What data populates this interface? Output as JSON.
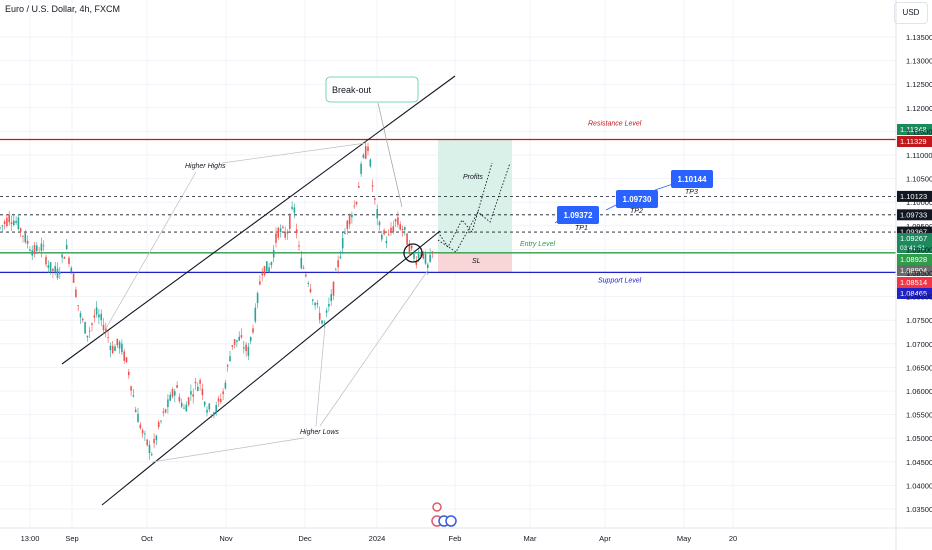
{
  "header": {
    "symbol_title": "Euro / U.S. Dollar, 4h, FXCM",
    "currency_button": "USD"
  },
  "chart_data": {
    "type": "candlestick",
    "instrument": "EUR/USD",
    "ylim": [
      1.03,
      1.14
    ],
    "y_ticks": [
      "1.13500",
      "1.13000",
      "1.12500",
      "1.12000",
      "1.11500",
      "1.11000",
      "1.10500",
      "1.10000",
      "1.09500",
      "1.09000",
      "1.08500",
      "1.08000",
      "1.07500",
      "1.07000",
      "1.06500",
      "1.06000",
      "1.05500",
      "1.05000",
      "1.04500",
      "1.04000",
      "1.03500"
    ],
    "x_ticks": [
      {
        "label": "13:00",
        "x": 30
      },
      {
        "label": "Sep",
        "x": 72
      },
      {
        "label": "Oct",
        "x": 147
      },
      {
        "label": "Nov",
        "x": 226
      },
      {
        "label": "Dec",
        "x": 305
      },
      {
        "label": "2024",
        "x": 377
      },
      {
        "label": "Feb",
        "x": 455
      },
      {
        "label": "Mar",
        "x": 530
      },
      {
        "label": "Apr",
        "x": 605
      },
      {
        "label": "May",
        "x": 684
      },
      {
        "label": "20",
        "x": 733
      }
    ],
    "price_path": [
      [
        0,
        1.0945
      ],
      [
        10,
        1.097
      ],
      [
        18,
        1.0955
      ],
      [
        26,
        1.092
      ],
      [
        34,
        1.0895
      ],
      [
        42,
        1.0905
      ],
      [
        50,
        1.086
      ],
      [
        58,
        1.085
      ],
      [
        66,
        1.0905
      ],
      [
        72,
        1.086
      ],
      [
        80,
        1.076
      ],
      [
        88,
        1.072
      ],
      [
        96,
        1.0765
      ],
      [
        104,
        1.074
      ],
      [
        112,
        1.069
      ],
      [
        120,
        1.07
      ],
      [
        128,
        1.065
      ],
      [
        136,
        1.056
      ],
      [
        144,
        1.05
      ],
      [
        152,
        1.047
      ],
      [
        160,
        1.053
      ],
      [
        168,
        1.057
      ],
      [
        176,
        1.061
      ],
      [
        184,
        1.056
      ],
      [
        192,
        1.06
      ],
      [
        200,
        1.062
      ],
      [
        208,
        1.056
      ],
      [
        216,
        1.056
      ],
      [
        224,
        1.06
      ],
      [
        232,
        1.07
      ],
      [
        240,
        1.071
      ],
      [
        248,
        1.068
      ],
      [
        256,
        1.077
      ],
      [
        262,
        1.086
      ],
      [
        270,
        1.086
      ],
      [
        278,
        1.094
      ],
      [
        286,
        1.093
      ],
      [
        294,
        1.099
      ],
      [
        300,
        1.088
      ],
      [
        308,
        1.084
      ],
      [
        316,
        1.078
      ],
      [
        324,
        1.074
      ],
      [
        332,
        1.08
      ],
      [
        340,
        1.089
      ],
      [
        348,
        1.096
      ],
      [
        356,
        1.1
      ],
      [
        362,
        1.108
      ],
      [
        368,
        1.112
      ],
      [
        374,
        1.101
      ],
      [
        380,
        1.094
      ],
      [
        388,
        1.092
      ],
      [
        396,
        1.096
      ],
      [
        404,
        1.094
      ],
      [
        410,
        1.09
      ],
      [
        416,
        1.088
      ],
      [
        422,
        1.09
      ],
      [
        428,
        1.086
      ],
      [
        434,
        1.09
      ]
    ],
    "levels": [
      {
        "name": "Resistance Level",
        "price": 1.11329,
        "color": "#c2181b"
      },
      {
        "name": "Support Level",
        "price": 1.08514,
        "color": "#1e22c8"
      },
      {
        "name": "Entry Level",
        "price": 1.08928,
        "color": "#2e9c48"
      },
      {
        "name": "TP1",
        "price": 1.09372
      },
      {
        "name": "TP2",
        "price": 1.0973
      },
      {
        "name": "TP3",
        "price": 1.10144
      },
      {
        "name": "dashed",
        "price": 1.10123
      },
      {
        "name": "dashed",
        "price": 1.09733
      },
      {
        "name": "dashed",
        "price": 1.09367
      }
    ],
    "price_labels": [
      {
        "text": "1.11348",
        "bg": "#1d8a5e",
        "price": 1.11348
      },
      {
        "text": "1.11329",
        "bg": "#c2181b",
        "price": 1.11329
      },
      {
        "text": "1.10123",
        "bg": "#131722",
        "price": 1.10123
      },
      {
        "text": "1.09733",
        "bg": "#131722",
        "price": 1.09733
      },
      {
        "text": "1.09367",
        "bg": "#131722",
        "price": 1.09367
      },
      {
        "text": "1.09267",
        "bg": "#1d8a5e",
        "price": 1.09267,
        "sub": "03:41:51"
      },
      {
        "text": "1.08928",
        "bg": "#2e9c48",
        "price": 1.08928
      },
      {
        "text": "1.08904",
        "bg": "#6b6b6b",
        "price": 1.08904
      },
      {
        "text": "1.08514",
        "bg": "#f23645",
        "price": 1.08514
      },
      {
        "text": "1.08465",
        "bg": "#1e22c8",
        "price": 1.08465
      }
    ],
    "annotations": {
      "break_out": "Break-out",
      "higher_highs": "Higher Highs",
      "higher_lows": "Higher Lows",
      "profits": "Profits",
      "entry": "Entry Level",
      "resistance": "Resistance Level",
      "support": "Support Level",
      "sl": "SL",
      "tp1_box": "1.09372",
      "tp2_box": "1.09730",
      "tp3_box": "1.10144",
      "tp1": "TP1",
      "tp2": "TP2",
      "tp3": "TP3"
    },
    "colors": {
      "up": "#26a69a",
      "down": "#ef5350",
      "tp_box": "#2962ff",
      "profit_zone": "#d9f1e8",
      "loss_zone": "#f8d6d8"
    }
  }
}
